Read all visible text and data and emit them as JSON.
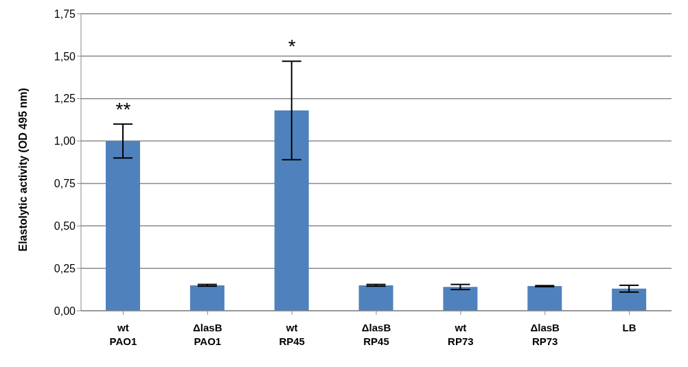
{
  "chart_data": {
    "type": "bar",
    "ylabel": "Elastolytic activity (OD 495 nm)",
    "categories": [
      "wt\nPAO1",
      "ΔlasB\nPAO1",
      "wt\nRP45",
      "ΔlasB\nRP45",
      "wt\nRP73",
      "ΔlasB\nRP73",
      "LB"
    ],
    "values": [
      1.0,
      0.15,
      1.18,
      0.15,
      0.14,
      0.145,
      0.13
    ],
    "errors": [
      0.1,
      0.005,
      0.29,
      0.005,
      0.015,
      0.003,
      0.02
    ],
    "color": "#4f81bd",
    "ylim": [
      0,
      1.75
    ],
    "yticks": [
      {
        "value": 0,
        "label": "0,00"
      },
      {
        "value": 0.25,
        "label": "0,25"
      },
      {
        "value": 0.5,
        "label": "0,50"
      },
      {
        "value": 0.75,
        "label": "0,75"
      },
      {
        "value": 1,
        "label": "1,00"
      },
      {
        "value": 1.25,
        "label": "1,25"
      },
      {
        "value": 1.5,
        "label": "1,50"
      },
      {
        "value": 1.75,
        "label": "1,75"
      }
    ],
    "grid": "y",
    "annotations": [
      {
        "text": "**",
        "x": "wt\nPAO1",
        "y": 1.0
      },
      {
        "text": "*",
        "x": "wt\nRP45",
        "y": 1.18
      }
    ]
  }
}
